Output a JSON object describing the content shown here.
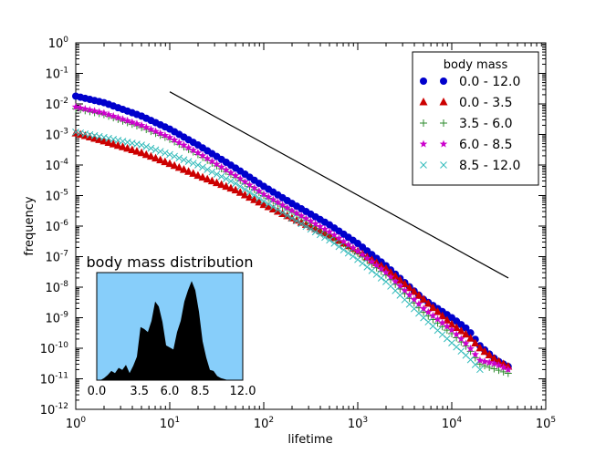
{
  "chart_data": [
    {
      "type": "scatter",
      "xscale": "log",
      "yscale": "log",
      "xlim": [
        1,
        100000
      ],
      "ylim": [
        1e-12,
        1
      ],
      "xlabel": "lifetime",
      "ylabel": "frequency",
      "x_ticks": [
        {
          "base": "10",
          "exp": "0"
        },
        {
          "base": "10",
          "exp": "1"
        },
        {
          "base": "10",
          "exp": "2"
        },
        {
          "base": "10",
          "exp": "3"
        },
        {
          "base": "10",
          "exp": "4"
        },
        {
          "base": "10",
          "exp": "5"
        }
      ],
      "y_ticks": [
        {
          "base": "10",
          "exp": "0"
        },
        {
          "base": "10",
          "exp": "-1"
        },
        {
          "base": "10",
          "exp": "-2"
        },
        {
          "base": "10",
          "exp": "-3"
        },
        {
          "base": "10",
          "exp": "-4"
        },
        {
          "base": "10",
          "exp": "-5"
        },
        {
          "base": "10",
          "exp": "-6"
        },
        {
          "base": "10",
          "exp": "-7"
        },
        {
          "base": "10",
          "exp": "-8"
        },
        {
          "base": "10",
          "exp": "-9"
        },
        {
          "base": "10",
          "exp": "-10"
        },
        {
          "base": "10",
          "exp": "-11"
        },
        {
          "base": "10",
          "exp": "-12"
        }
      ],
      "legend": {
        "title": "body mass",
        "position": "top-right"
      },
      "series": [
        {
          "name": "0.0 - 12.0",
          "marker": "circle",
          "color": "#0000cc",
          "x": [
            1,
            2,
            5,
            10,
            20,
            50,
            100,
            200,
            500,
            1000,
            2000,
            5000,
            10000,
            15000,
            20000,
            30000,
            40000
          ],
          "y": [
            0.018,
            0.011,
            0.004,
            0.0015,
            0.00045,
            8e-05,
            2e-05,
            5.5e-06,
            1.1e-06,
            2.7e-07,
            5e-08,
            4e-09,
            1e-09,
            4e-10,
            1.2e-10,
            4e-11,
            2.5e-11
          ]
        },
        {
          "name": "0.0 - 3.5",
          "marker": "triangle",
          "color": "#cc0000",
          "x": [
            1,
            2,
            5,
            10,
            20,
            50,
            100,
            200,
            500,
            1000,
            2000,
            5000,
            10000,
            15000,
            20000,
            30000,
            40000
          ],
          "y": [
            0.0011,
            0.0006,
            0.00025,
            0.00011,
            4.5e-05,
            1.5e-05,
            5e-06,
            1.8e-06,
            5e-07,
            1.5e-07,
            4e-08,
            4e-09,
            6e-10,
            2.5e-10,
            1e-10,
            4e-11,
            2.5e-11
          ]
        },
        {
          "name": "3.5 - 6.0",
          "marker": "plus",
          "color": "#2e8b2e",
          "x": [
            1,
            2,
            5,
            10,
            20,
            50,
            100,
            200,
            500,
            1000,
            2000,
            5000,
            10000,
            15000,
            20000,
            30000,
            40000
          ],
          "y": [
            0.007,
            0.0045,
            0.0017,
            0.0007,
            0.00022,
            4e-05,
            1e-05,
            3e-06,
            5.5e-07,
            1.3e-07,
            2.5e-08,
            1.5e-09,
            3e-10,
            1e-10,
            3e-11,
            2e-11,
            1.5e-11
          ]
        },
        {
          "name": "6.0 - 8.5",
          "marker": "star",
          "color": "#cc00cc",
          "x": [
            1,
            2,
            5,
            10,
            20,
            50,
            100,
            200,
            500,
            1000,
            2000,
            5000,
            10000,
            15000,
            20000,
            30000,
            40000
          ],
          "y": [
            0.008,
            0.005,
            0.002,
            0.0008,
            0.00025,
            4.5e-05,
            1.1e-05,
            3.2e-06,
            6.5e-07,
            1.5e-07,
            3e-08,
            2e-09,
            4e-10,
            1.2e-10,
            4e-11,
            3e-11,
            2e-11
          ]
        },
        {
          "name": "8.5 - 12.0",
          "marker": "x",
          "color": "#33bbbb",
          "x": [
            1,
            2,
            5,
            10,
            20,
            50,
            100,
            200,
            500,
            1000,
            2000,
            5000,
            10000,
            15000,
            20000
          ],
          "y": [
            0.0012,
            0.0008,
            0.00045,
            0.00022,
            0.0001,
            2.5e-05,
            6.5e-06,
            1.8e-06,
            3.5e-07,
            8e-08,
            1.5e-08,
            1e-09,
            1.5e-10,
            5e-11,
            2e-11
          ]
        }
      ],
      "reference_line": {
        "x": [
          10,
          40000
        ],
        "y": [
          0.025,
          2e-08
        ],
        "color": "#000000"
      },
      "inset": {
        "type": "area",
        "title": "body mass distribution",
        "background": "#87cefa",
        "fill": "#000000",
        "xlim": [
          0,
          12
        ],
        "ylim": [
          0,
          1
        ],
        "x_ticks": [
          "0.0",
          "3.5",
          "6.0",
          "8.5",
          "12.0"
        ],
        "x": [
          0,
          0.3,
          0.6,
          0.9,
          1.2,
          1.5,
          1.8,
          2.1,
          2.4,
          2.7,
          3.0,
          3.3,
          3.6,
          3.9,
          4.2,
          4.5,
          4.8,
          5.1,
          5.4,
          5.7,
          6.0,
          6.3,
          6.6,
          6.9,
          7.2,
          7.5,
          7.8,
          8.1,
          8.4,
          8.7,
          9.0,
          9.3,
          9.6,
          9.9,
          10.2,
          10.5,
          10.8,
          11.1,
          11.4,
          11.7,
          12.0
        ],
        "y": [
          0,
          0,
          0.02,
          0.05,
          0.07,
          0.09,
          0.1,
          0.12,
          0.13,
          0.09,
          0.12,
          0.25,
          0.5,
          0.52,
          0.45,
          0.6,
          0.75,
          0.74,
          0.55,
          0.36,
          0.3,
          0.32,
          0.45,
          0.6,
          0.75,
          0.9,
          0.95,
          0.9,
          0.65,
          0.4,
          0.2,
          0.12,
          0.07,
          0.04,
          0.02,
          0.01,
          0,
          0,
          0,
          0,
          0
        ]
      }
    }
  ]
}
